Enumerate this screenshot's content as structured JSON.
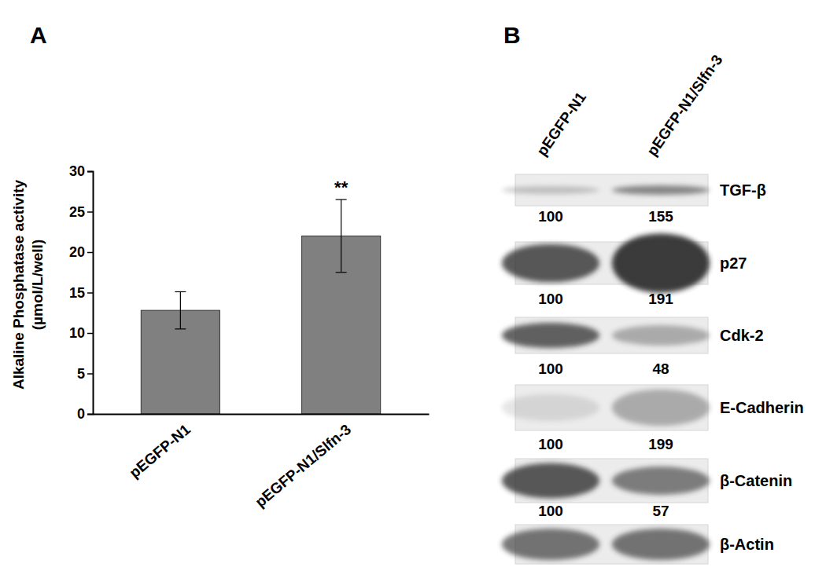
{
  "chart_data": {
    "type": "bar",
    "title": "A",
    "y_label": [
      "Alkaline Phosphatase activity",
      "(µmol/L/well)"
    ],
    "categories": [
      "pEGFP-N1",
      "pEGFP-N1/Slfn-3"
    ],
    "values": [
      12.8,
      22.0
    ],
    "errors": [
      2.3,
      4.5
    ],
    "color": "#808080",
    "ylim": [
      0,
      30
    ],
    "yticks": [
      0,
      5,
      10,
      15,
      20,
      25,
      30
    ],
    "grid": false,
    "annotations": [
      {
        "text": "**",
        "category": 1
      }
    ]
  },
  "blot": {
    "panel": "B",
    "lanes": [
      "pEGFP-N1",
      "pEGFP-N1/Slfn-3"
    ],
    "bands": [
      {
        "protein": "TGF-β",
        "values": [
          100,
          155
        ]
      },
      {
        "protein": "p27",
        "values": [
          100,
          191
        ]
      },
      {
        "protein": "Cdk-2",
        "values": [
          100,
          48
        ]
      },
      {
        "protein": "E-Cadherin",
        "values": [
          100,
          199
        ]
      },
      {
        "protein": "β-Catenin",
        "values": [
          100,
          57
        ]
      },
      {
        "protein": "β-Actin"
      }
    ]
  }
}
